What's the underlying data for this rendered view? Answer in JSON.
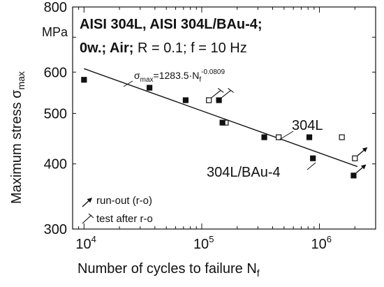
{
  "chart_data": {
    "type": "scatter",
    "title_line1": "AISI 304L, AISI 304L/BAu-4;",
    "title_line2_bold": "0w.; Air;",
    "title_line2_rest": " R = 0.1; f = 10 Hz",
    "xlabel_main": "Number of cycles to failure N",
    "xlabel_sub": "f",
    "ylabel_main": "Maximum stress σ",
    "ylabel_sub": "max",
    "yunit": "MPa",
    "x_scale": "log",
    "y_scale": "log",
    "xlim": [
      8000,
      3000000
    ],
    "ylim": [
      300,
      800
    ],
    "x_ticks": [
      {
        "value": 10000,
        "base": "10",
        "exp": "4"
      },
      {
        "value": 100000,
        "base": "10",
        "exp": "5"
      },
      {
        "value": 1000000,
        "base": "10",
        "exp": "6"
      }
    ],
    "y_ticks": [
      {
        "value": 300,
        "label": "300"
      },
      {
        "value": 400,
        "label": "400"
      },
      {
        "value": 500,
        "label": "500"
      },
      {
        "value": 600,
        "label": "600"
      },
      {
        "value": 800,
        "label": "800"
      }
    ],
    "fit": {
      "label_prefix": "σ",
      "label_sub": "max",
      "label_mid": "=1283.5·N",
      "label_sub2": "f",
      "label_exp": "-0.0809",
      "coefficient": 1283.5,
      "exponent": -0.0809,
      "x_range": [
        10000,
        2100000
      ]
    },
    "series": [
      {
        "name": "304L",
        "marker": "open-square",
        "points": [
          {
            "x": 115000,
            "y": 530,
            "mark": "test-after-ro"
          },
          {
            "x": 160000,
            "y": 480
          },
          {
            "x": 450000,
            "y": 450
          },
          {
            "x": 1550000,
            "y": 450
          },
          {
            "x": 2000000,
            "y": 410,
            "mark": "run-out"
          }
        ]
      },
      {
        "name": "304L/BAu-4",
        "marker": "filled-square",
        "points": [
          {
            "x": 10000,
            "y": 580
          },
          {
            "x": 36000,
            "y": 560
          },
          {
            "x": 73000,
            "y": 530
          },
          {
            "x": 140000,
            "y": 530,
            "mark": "test-after-ro"
          },
          {
            "x": 150000,
            "y": 480
          },
          {
            "x": 340000,
            "y": 450
          },
          {
            "x": 820000,
            "y": 450
          },
          {
            "x": 880000,
            "y": 410
          },
          {
            "x": 1950000,
            "y": 380,
            "mark": "run-out"
          }
        ]
      }
    ],
    "series_labels": [
      {
        "text": "304L"
      },
      {
        "text": "304L/BAu-4"
      }
    ],
    "legend": {
      "placement": "bottom-left",
      "items": [
        {
          "symbol": "run-out-arrow",
          "label": "run-out (r-o)"
        },
        {
          "symbol": "test-after-ro",
          "label": "test after r-o"
        }
      ]
    },
    "colors": {
      "ink": "#111111",
      "background": "#ffffff"
    }
  }
}
